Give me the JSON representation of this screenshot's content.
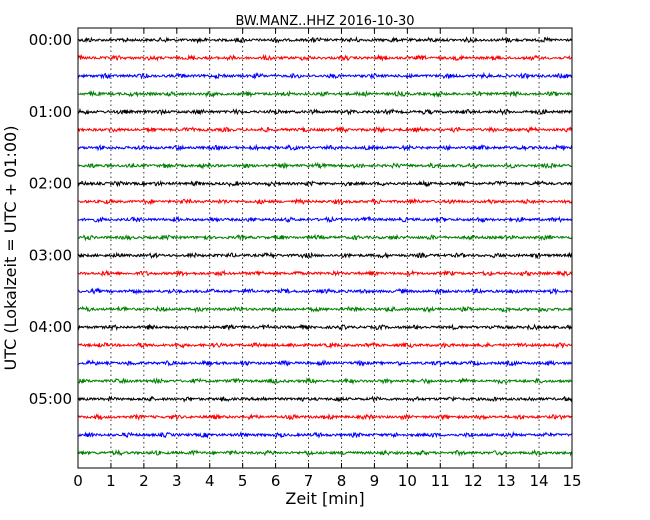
{
  "chart_data": {
    "type": "line",
    "title": "BW.MANZ..HHZ 2016-10-30",
    "xlabel": "Zeit  [min]",
    "ylabel": "UTC (Lokalzeit = UTC + 01:00)",
    "xlim": [
      0,
      15
    ],
    "x_ticks": [
      "0",
      "1",
      "2",
      "3",
      "4",
      "5",
      "6",
      "7",
      "8",
      "9",
      "10",
      "11",
      "12",
      "13",
      "14",
      "15"
    ],
    "y_tick_labels": [
      "00:00",
      "01:00",
      "02:00",
      "03:00",
      "04:00",
      "05:00"
    ],
    "trace_interval_minutes": 15,
    "trace_count": 24,
    "color_cycle": [
      "#000000",
      "#ff0000",
      "#0000ff",
      "#008000"
    ],
    "grid": "vertical-dotted"
  }
}
